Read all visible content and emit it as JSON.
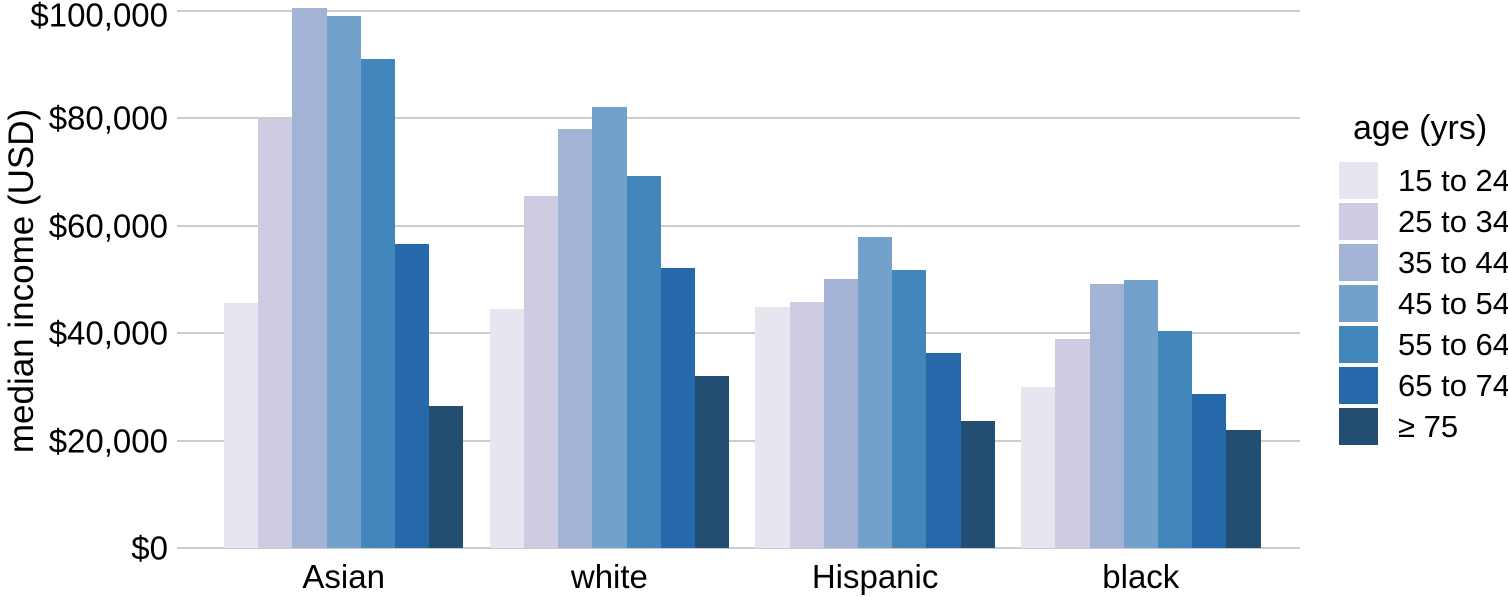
{
  "chart_data": {
    "type": "bar",
    "title": "",
    "xlabel": "",
    "ylabel": "median income (USD)",
    "categories": [
      "Asian",
      "white",
      "Hispanic",
      "black"
    ],
    "series": [
      {
        "name": "15 to 24",
        "color": "#E8E4F0",
        "values": [
          45600,
          44500,
          44800,
          30000
        ]
      },
      {
        "name": "25 to 34",
        "color": "#CDCCE2",
        "values": [
          79800,
          65400,
          45700,
          38900
        ]
      },
      {
        "name": "35 to 44",
        "color": "#A3B3D5",
        "values": [
          100500,
          78000,
          50000,
          49100
        ]
      },
      {
        "name": "45 to 54",
        "color": "#73A1CB",
        "values": [
          98900,
          82100,
          57800,
          49900
        ]
      },
      {
        "name": "55 to 64",
        "color": "#4287BC",
        "values": [
          91000,
          69300,
          51800,
          40300
        ]
      },
      {
        "name": "65 to 74",
        "color": "#2569AB",
        "values": [
          56600,
          52100,
          36300,
          28600
        ]
      },
      {
        "name": "≥ 75",
        "color": "#234E72",
        "values": [
          26500,
          32000,
          23700,
          22000
        ]
      }
    ],
    "legend": {
      "title": "age (yrs)",
      "position": "right",
      "entries": [
        "15 to 24",
        "25 to 34",
        "35 to 44",
        "45 to 54",
        "55 to 64",
        "65 to 74",
        "≥ 75"
      ]
    },
    "ylim": [
      0,
      100000
    ],
    "ytick_interval": 20000,
    "ytick_labels": [
      "$0",
      "$20,000",
      "$40,000",
      "$60,000",
      "$80,000",
      "$100,000"
    ],
    "grid": "horizontal-only",
    "grid_color": "#cccccc",
    "text_color": "#000000",
    "background_color": "#ffffff"
  }
}
